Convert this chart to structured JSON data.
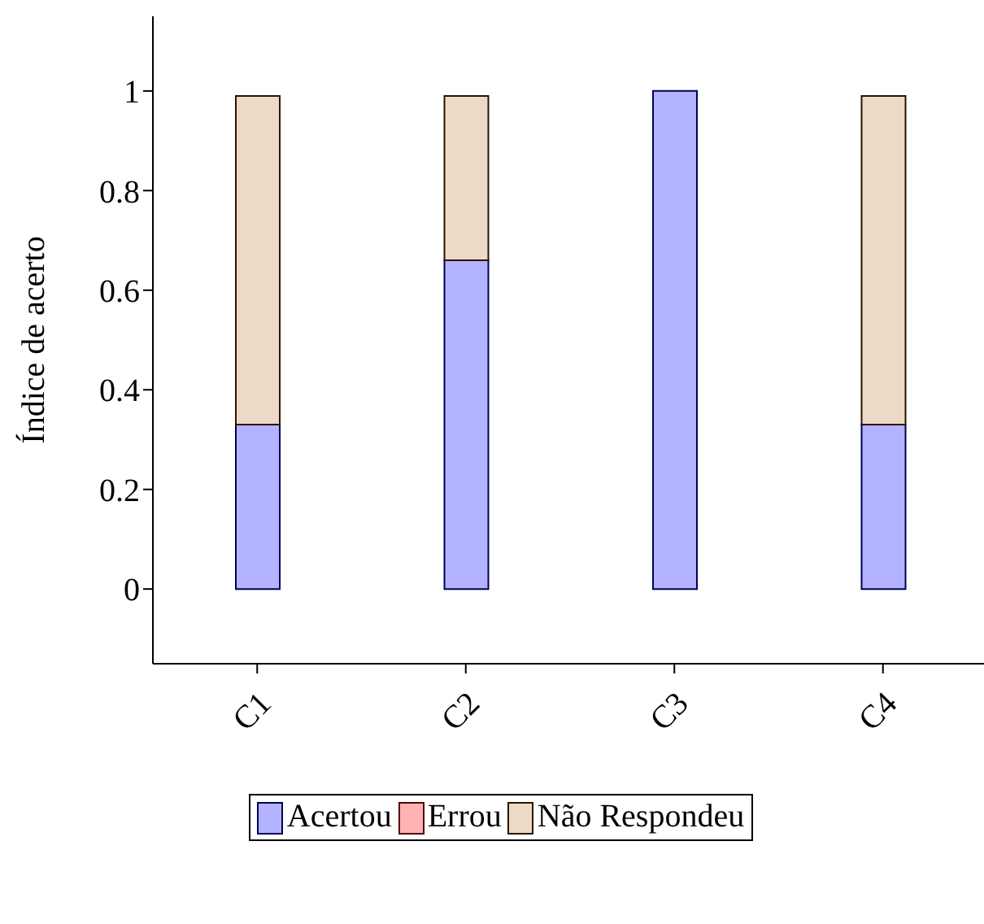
{
  "chart_data": {
    "type": "bar",
    "stacked": true,
    "ylabel": "Índice de acerto",
    "categories": [
      "C1",
      "C2",
      "C3",
      "C4"
    ],
    "series": [
      {
        "name": "Acertou",
        "color": "#b3b3ff",
        "values": [
          0.33,
          0.66,
          1,
          0.33
        ]
      },
      {
        "name": "Errou",
        "color": "#ffb3b3",
        "values": [
          0,
          0,
          0,
          0
        ]
      },
      {
        "name": "Não Respondeu",
        "color": "#ecd9c6",
        "values": [
          0.66,
          0.33,
          0,
          0.66
        ]
      }
    ],
    "ylim": [
      -0.15,
      1.15
    ],
    "yticks": [
      0,
      0.2,
      0.4,
      0.6,
      0.8,
      1
    ],
    "legend": "bottom",
    "grid": false
  }
}
